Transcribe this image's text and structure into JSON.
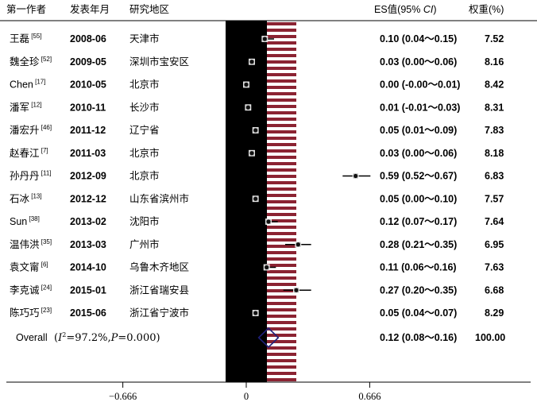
{
  "chart_data": {
    "type": "forest",
    "headers": {
      "author": "第一作者",
      "year": "发表年月",
      "region": "研究地区",
      "es_prefix": "ES值(95% ",
      "es_ci": "CI",
      "es_suffix": ")",
      "weight": "权重(%)"
    },
    "studies": [
      {
        "author": "王磊",
        "ref": "[55]",
        "year": "2008-06",
        "region": "天津市",
        "es": 0.1,
        "lo": 0.04,
        "hi": 0.15,
        "es_text": "0.10 (0.04～0.15)",
        "weight": "7.52"
      },
      {
        "author": "魏全珍",
        "ref": "[52]",
        "year": "2009-05",
        "region": "深圳市宝安区",
        "es": 0.03,
        "lo": 0.0,
        "hi": 0.06,
        "es_text": "0.03 (0.00～0.06)",
        "weight": "8.16"
      },
      {
        "author": "Chen",
        "ref": "[17]",
        "year": "2010-05",
        "region": "北京市",
        "es": 0.0,
        "lo": 0.0,
        "hi": 0.01,
        "es_text": "0.00 (-0.00～0.01)",
        "weight": "8.42"
      },
      {
        "author": "潘军",
        "ref": "[12]",
        "year": "2010-11",
        "region": "长沙市",
        "es": 0.01,
        "lo": -0.01,
        "hi": 0.03,
        "es_text": "0.01 (-0.01～0.03)",
        "weight": "8.31"
      },
      {
        "author": "潘宏升",
        "ref": "[46]",
        "year": "2011-12",
        "region": "辽宁省",
        "es": 0.05,
        "lo": 0.01,
        "hi": 0.09,
        "es_text": "0.05 (0.01～0.09)",
        "weight": "7.83"
      },
      {
        "author": "赵春江",
        "ref": "[7]",
        "year": "2011-03",
        "region": "北京市",
        "es": 0.03,
        "lo": 0.0,
        "hi": 0.06,
        "es_text": "0.03 (0.00～0.06)",
        "weight": "8.18"
      },
      {
        "author": "孙丹丹",
        "ref": "[11]",
        "year": "2012-09",
        "region": "北京市",
        "es": 0.59,
        "lo": 0.52,
        "hi": 0.67,
        "es_text": "0.59 (0.52～0.67)",
        "weight": "6.83"
      },
      {
        "author": "石冰",
        "ref": "[13]",
        "year": "2012-12",
        "region": "山东省滨州市",
        "es": 0.05,
        "lo": 0.0,
        "hi": 0.1,
        "es_text": "0.05 (0.00～0.10)",
        "weight": "7.57"
      },
      {
        "author": "Sun",
        "ref": "[38]",
        "year": "2013-02",
        "region": "沈阳市",
        "es": 0.12,
        "lo": 0.07,
        "hi": 0.17,
        "es_text": "0.12 (0.07～0.17)",
        "weight": "7.64"
      },
      {
        "author": "温伟洪",
        "ref": "[35]",
        "year": "2013-03",
        "region": "广州市",
        "es": 0.28,
        "lo": 0.21,
        "hi": 0.35,
        "es_text": "0.28 (0.21～0.35)",
        "weight": "6.95"
      },
      {
        "author": "袁文甯",
        "ref": "[6]",
        "year": "2014-10",
        "region": "乌鲁木齐地区",
        "es": 0.11,
        "lo": 0.06,
        "hi": 0.16,
        "es_text": "0.11 (0.06～0.16)",
        "weight": "7.63"
      },
      {
        "author": "李克诚",
        "ref": "[24]",
        "year": "2015-01",
        "region": "浙江省瑞安县",
        "es": 0.27,
        "lo": 0.2,
        "hi": 0.35,
        "es_text": "0.27 (0.20～0.35)",
        "weight": "6.68"
      },
      {
        "author": "陈巧巧",
        "ref": "[23]",
        "year": "2015-06",
        "region": "浙江省宁波市",
        "es": 0.05,
        "lo": 0.04,
        "hi": 0.07,
        "es_text": "0.05 (0.04～0.07)",
        "weight": "8.29"
      }
    ],
    "overall": {
      "label": "Overall",
      "stat_open": "(",
      "stat_i": "I",
      "stat_sup": "2",
      "stat_mid": "=97.2%,",
      "stat_p": "P",
      "stat_close": "=0.000)",
      "es": 0.12,
      "lo": 0.08,
      "hi": 0.16,
      "es_text": "0.12 (0.08～0.16)",
      "weight": "100.00"
    },
    "x_ticks": [
      {
        "value": -0.666,
        "label": "−0.666"
      },
      {
        "value": 0,
        "label": "0"
      },
      {
        "value": 0.666,
        "label": "0.666"
      }
    ],
    "null_band_color": "#000000",
    "stripe_color": "#8b2332",
    "marker_color": "#111111",
    "diamond_color": "#1f1f7a"
  }
}
